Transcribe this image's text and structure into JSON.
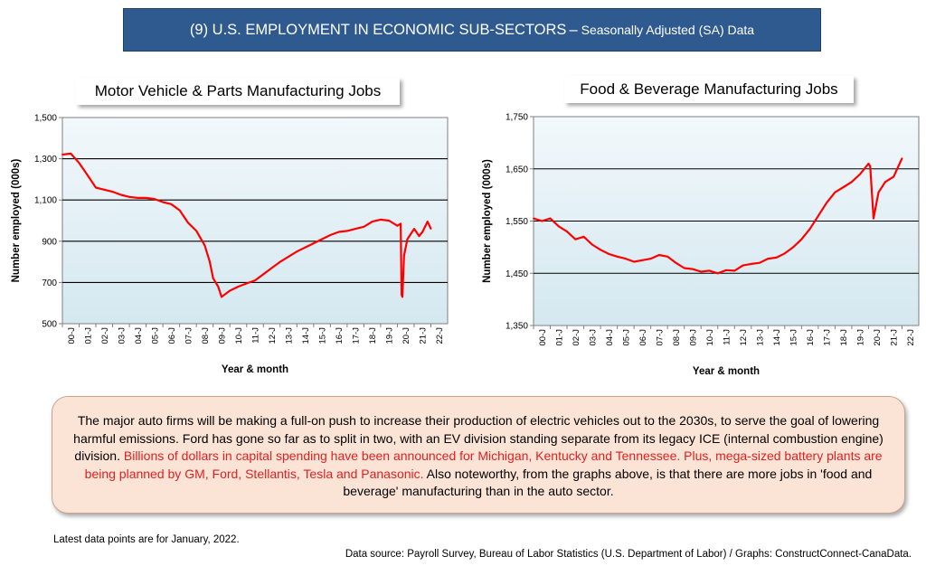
{
  "header": {
    "title_main": "(9) U.S. EMPLOYMENT IN ECONOMIC SUB-SECTORS",
    "title_dash": "–",
    "title_sub": "Seasonally Adjusted (SA) Data"
  },
  "chart_data": [
    {
      "type": "line",
      "title": "Motor Vehicle & Parts Manufacturing Jobs",
      "xlabel": "Year & month",
      "ylabel": "Number employed (000s)",
      "ylim": [
        500,
        1500
      ],
      "yticks": [
        "500",
        "700",
        "900",
        "1,100",
        "1,300",
        "1,500"
      ],
      "ytick_values": [
        500,
        700,
        900,
        1100,
        1300,
        1500
      ],
      "xticks": [
        "00-J",
        "01-J",
        "02-J",
        "03-J",
        "04-J",
        "05-J",
        "06-J",
        "07-J",
        "08-J",
        "09-J",
        "10-J",
        "11-J",
        "12-J",
        "13-J",
        "14-J",
        "15-J",
        "16-J",
        "17-J",
        "18-J",
        "19-J",
        "20-J",
        "21-J",
        "22-J"
      ],
      "x_range": [
        2000,
        2023
      ],
      "grid": "horizontal",
      "line_color": "#ff0000",
      "series": [
        {
          "x": [
            2000,
            2000.5,
            2001,
            2001.5,
            2002,
            2002.5,
            2003,
            2003.5,
            2004,
            2004.5,
            2005,
            2005.5,
            2006,
            2006.5,
            2007,
            2007.5,
            2008,
            2008.5,
            2008.8,
            2009,
            2009.3,
            2009.5,
            2010,
            2010.5,
            2011,
            2011.5,
            2012,
            2012.5,
            2013,
            2013.5,
            2014,
            2014.5,
            2015,
            2015.5,
            2016,
            2016.5,
            2017,
            2017.5,
            2018,
            2018.5,
            2019,
            2019.5,
            2020,
            2020.2,
            2020.25,
            2020.3,
            2020.4,
            2020.6,
            2021,
            2021.3,
            2021.5,
            2021.8,
            2022
          ],
          "y": [
            1320,
            1325,
            1280,
            1220,
            1160,
            1150,
            1140,
            1125,
            1115,
            1110,
            1110,
            1105,
            1090,
            1080,
            1050,
            990,
            950,
            880,
            800,
            720,
            680,
            630,
            660,
            680,
            695,
            710,
            740,
            770,
            800,
            825,
            850,
            870,
            890,
            910,
            930,
            945,
            950,
            960,
            970,
            995,
            1005,
            1000,
            975,
            985,
            640,
            630,
            830,
            910,
            960,
            925,
            945,
            995,
            960
          ]
        }
      ]
    },
    {
      "type": "line",
      "title": "Food & Beverage Manufacturing Jobs",
      "xlabel": "Year & month",
      "ylabel": "Number employed (000s)",
      "ylim": [
        1350,
        1750
      ],
      "yticks": [
        "1,350",
        "1,450",
        "1,550",
        "1,650",
        "1,750"
      ],
      "ytick_values": [
        1350,
        1450,
        1550,
        1650,
        1750
      ],
      "xticks": [
        "00-J",
        "01-J",
        "02-J",
        "03-J",
        "04-J",
        "05-J",
        "06-J",
        "07-J",
        "08-J",
        "09-J",
        "10-J",
        "11-J",
        "12-J",
        "13-J",
        "14-J",
        "15-J",
        "16-J",
        "17-J",
        "18-J",
        "19-J",
        "20-J",
        "21-J",
        "22-J"
      ],
      "x_range": [
        2000,
        2023
      ],
      "grid": "horizontal",
      "line_color": "#ff0000",
      "series": [
        {
          "x": [
            2000,
            2000.5,
            2001,
            2001.5,
            2002,
            2002.5,
            2003,
            2003.5,
            2004,
            2004.5,
            2005,
            2005.5,
            2006,
            2006.5,
            2007,
            2007.5,
            2008,
            2008.5,
            2009,
            2009.5,
            2010,
            2010.5,
            2011,
            2011.5,
            2012,
            2012.5,
            2013,
            2013.5,
            2014,
            2014.5,
            2015,
            2015.5,
            2016,
            2016.5,
            2017,
            2017.5,
            2018,
            2018.5,
            2019,
            2019.5,
            2020,
            2020.1,
            2020.3,
            2020.6,
            2021,
            2021.5,
            2022
          ],
          "y": [
            1555,
            1550,
            1555,
            1540,
            1530,
            1515,
            1520,
            1505,
            1495,
            1487,
            1482,
            1478,
            1472,
            1475,
            1478,
            1485,
            1482,
            1470,
            1460,
            1458,
            1453,
            1455,
            1450,
            1456,
            1455,
            1465,
            1468,
            1470,
            1478,
            1480,
            1488,
            1500,
            1515,
            1535,
            1560,
            1585,
            1605,
            1615,
            1625,
            1640,
            1660,
            1655,
            1555,
            1605,
            1625,
            1635,
            1670
          ]
        }
      ]
    }
  ],
  "note": {
    "text1": "The major auto firms will be making a full-on push to increase their production of electric vehicles out to the 2030s, to serve the goal of lowering harmful emissions. Ford has gone so far as to split in two, with an EV division standing separate from its legacy ICE (internal combustion engine) division. ",
    "text_red": "Billions of dollars in capital spending have been announced for Michigan, Kentucky and Tennessee. Plus, mega-sized battery plants are being planned by GM, Ford, Stellantis, Tesla and Panasonic.",
    "text2": " Also noteworthy, from the graphs above, is that there are more jobs in 'food and beverage' manufacturing than in the auto sector."
  },
  "footnote": "Latest data points are for January, 2022.",
  "source": "Data source: Payroll Survey, Bureau of Labor Statistics (U.S. Department of Labor) / Graphs: ConstructConnect-CanaData."
}
